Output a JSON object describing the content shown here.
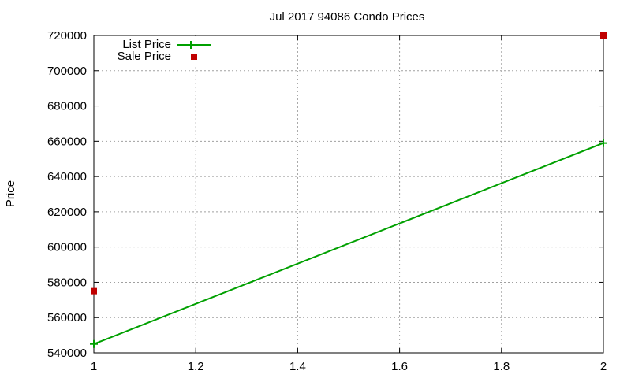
{
  "chart_data": {
    "type": "line",
    "title": "Jul 2017 94086 Condo Prices",
    "xlabel": "",
    "ylabel": "Price",
    "xlim": [
      1,
      2
    ],
    "ylim": [
      540000,
      720000
    ],
    "x_ticks": [
      "1",
      "1.2",
      "1.4",
      "1.6",
      "1.8",
      "2"
    ],
    "y_ticks": [
      "540000",
      "560000",
      "580000",
      "600000",
      "620000",
      "640000",
      "660000",
      "680000",
      "700000",
      "720000"
    ],
    "grid": true,
    "legend_position": "top-left",
    "series": [
      {
        "name": "List Price",
        "style": "lines+points",
        "color": "#00a000",
        "x": [
          1,
          2
        ],
        "values": [
          545000,
          659000
        ]
      },
      {
        "name": "Sale Price",
        "style": "points",
        "color": "#c00000",
        "x": [
          1,
          2
        ],
        "values": [
          575000,
          720000
        ]
      }
    ]
  },
  "legend": {
    "list_price_label": "List Price",
    "sale_price_label": "Sale Price"
  }
}
